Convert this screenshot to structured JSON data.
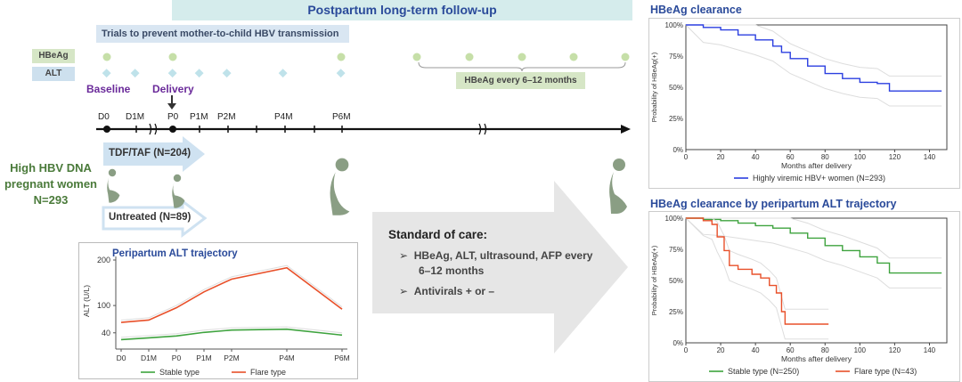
{
  "header": {
    "banner": "Postpartum long-term follow-up",
    "trials": "Trials to prevent mother-to-child HBV transmission"
  },
  "rows": {
    "hbeag": "HBeAg",
    "alt": "ALT"
  },
  "labels": {
    "baseline": "Baseline",
    "delivery": "Delivery",
    "hbeag_every": "HBeAg every 6–12 months",
    "tdf": "TDF/TAF (N=204)",
    "untreated": "Untreated (N=89)",
    "cohort": [
      "High HBV DNA",
      "pregnant women",
      "N=293"
    ]
  },
  "timeline": {
    "ticks": [
      "D0",
      "D1M",
      "P0",
      "P1M",
      "P2M",
      "P4M",
      "P6M"
    ]
  },
  "standard_of_care": {
    "title": "Standard of care:",
    "items": [
      "HBeAg, ALT, ultrasound, AFP every",
      "6–12 months",
      "Antivirals + or –"
    ]
  },
  "colors": {
    "blue": "#2b3fe0",
    "green": "#3ea33e",
    "red": "#e8502a",
    "teal": "#d5ecec"
  },
  "chart_data": [
    {
      "type": "line",
      "title": "Peripartum ALT trajectory",
      "ylabel": "ALT (U/L)",
      "categories": [
        "D0",
        "D1M",
        "P0",
        "P1M",
        "P2M",
        "P4M",
        "P6M"
      ],
      "yticks": [
        40,
        100,
        200
      ],
      "series": [
        {
          "name": "Stable type",
          "color": "#3ea33e",
          "x": [
            0,
            1,
            2,
            3,
            4,
            6,
            8
          ],
          "values": [
            25,
            29,
            33,
            41,
            46,
            48,
            35
          ]
        },
        {
          "name": "Flare type",
          "color": "#e8502a",
          "x": [
            0,
            1,
            2,
            3,
            4,
            6,
            8
          ],
          "values": [
            63,
            68,
            95,
            130,
            158,
            183,
            92
          ]
        }
      ]
    },
    {
      "type": "line",
      "title": "HBeAg clearance",
      "xlabel": "Months after delivery",
      "ylabel": "Probability of HBeAg(+)",
      "xticks": [
        0,
        20,
        40,
        60,
        80,
        100,
        120,
        140
      ],
      "yticks": [
        "0%",
        "25%",
        "50%",
        "75%",
        "100%"
      ],
      "series": [
        {
          "name": "Highly viremic HBV+ women (N=293)",
          "color": "#2b3fe0",
          "x": [
            0,
            10,
            20,
            30,
            40,
            50,
            55,
            60,
            70,
            80,
            90,
            100,
            110,
            117,
            147
          ],
          "values": [
            100,
            98,
            96,
            92,
            88,
            83,
            78,
            73,
            67,
            61,
            57,
            54,
            53,
            47,
            47
          ]
        }
      ]
    },
    {
      "type": "line",
      "title": "HBeAg clearance by peripartum ALT trajectory",
      "xlabel": "Months after delivery",
      "ylabel": "Probability of HBeAg(+)",
      "xticks": [
        0,
        20,
        40,
        60,
        80,
        100,
        120,
        140
      ],
      "yticks": [
        "0%",
        "25%",
        "50%",
        "75%",
        "100%"
      ],
      "series": [
        {
          "name": "Stable type (N=250)",
          "color": "#3ea33e",
          "x": [
            0,
            10,
            20,
            30,
            40,
            50,
            60,
            70,
            80,
            90,
            100,
            110,
            117,
            147
          ],
          "values": [
            100,
            99,
            98,
            96,
            94,
            92,
            88,
            84,
            78,
            74,
            69,
            64,
            56,
            56
          ]
        },
        {
          "name": "Flare type (N=43)",
          "color": "#e8502a",
          "x": [
            0,
            10,
            15,
            18,
            22,
            25,
            30,
            38,
            43,
            48,
            52,
            55,
            57,
            82
          ],
          "values": [
            100,
            98,
            95,
            85,
            74,
            62,
            59,
            55,
            52,
            46,
            40,
            25,
            15,
            15
          ]
        }
      ]
    }
  ]
}
